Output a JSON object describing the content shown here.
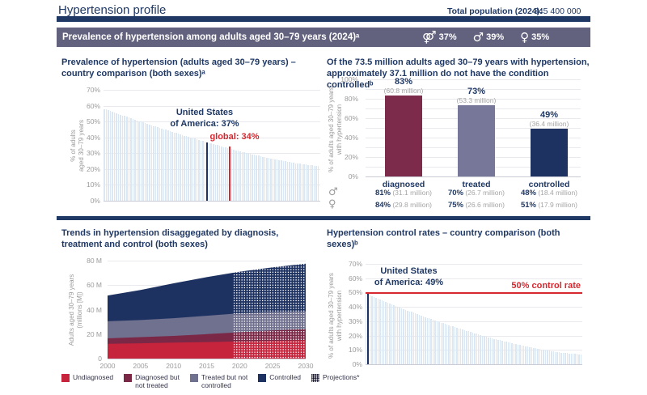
{
  "header": {
    "title": "Hypertension profile",
    "total_population_label": "Total population (2024):",
    "total_population_value": "345 400 000"
  },
  "banner": {
    "title": "Prevalence of hypertension among adults aged 30–79 years (2024)ᵃ",
    "stats": [
      {
        "icon": "both-sexes-icon",
        "glyph": "⚤",
        "value": "37%"
      },
      {
        "icon": "male-icon",
        "glyph": "♂",
        "value": "39%"
      },
      {
        "icon": "female-icon",
        "glyph": "♀",
        "value": "35%"
      }
    ]
  },
  "colors": {
    "navy": "#1e3262",
    "navy_text": "#1f3864",
    "red": "#d7282f",
    "maroon": "#7d2b4b",
    "slate": "#77779a",
    "light_bar": "#dbe8f4",
    "banner_bg": "#62627f",
    "grid": "#e9e9ee",
    "baseline": "#c9ccd4",
    "tick_text": "#9b9b9b",
    "sub_gray": "#a5a5a5"
  },
  "chart_data": [
    {
      "id": "prevalence-comparison",
      "type": "bar",
      "title": "Prevalence of hypertension (adults aged 30–79 years) – country comparison (both sexes)ᵃ",
      "ylabel_lines": [
        "% of adults",
        "aged 30–79 years"
      ],
      "ylim": [
        0,
        70
      ],
      "yticks": [
        "0%",
        "10%",
        "20%",
        "30%",
        "40%",
        "50%",
        "60%",
        "70%"
      ],
      "n_bars": 105,
      "values_start": 58,
      "values_end": 22,
      "decay_exponent": 1.35,
      "highlight": {
        "annotation_lines": [
          "United States",
          "of America: 37%"
        ],
        "value": 37,
        "index_fraction": 0.48
      },
      "reference": {
        "label": "global: 34%",
        "value": 34,
        "index_fraction": 0.585
      },
      "grid": true,
      "legend_position": "none"
    },
    {
      "id": "care-cascade",
      "type": "bar",
      "title": "Of the 73.5 million adults aged 30–79 years with hypertension, approximately 37.1 million do not have the condition controlledᵇ",
      "ylabel_lines": [
        "% of adults aged 30–79 years",
        "with hypertension"
      ],
      "ylim": [
        0,
        100
      ],
      "yticks": [
        "0%",
        "20%",
        "40%",
        "60%",
        "80%",
        "100%"
      ],
      "categories": [
        "diagnosed",
        "treated",
        "controlled"
      ],
      "values": [
        83,
        73,
        49
      ],
      "value_labels": [
        "83%",
        "73%",
        "49%"
      ],
      "value_sublabels": [
        "(60.8 million)",
        "(53.3 million)",
        "(36.4 million)"
      ],
      "bar_colors": [
        "#7d2b4b",
        "#77779a",
        "#1e3262"
      ],
      "sex_rows": [
        {
          "icon": "male-icon",
          "glyph": "♂",
          "cells": [
            {
              "pct": "81%",
              "millions": "(31.1 million)"
            },
            {
              "pct": "70%",
              "millions": "(26.7 million)"
            },
            {
              "pct": "48%",
              "millions": "(18.4 million)"
            }
          ]
        },
        {
          "icon": "female-icon",
          "glyph": "♀",
          "cells": [
            {
              "pct": "84%",
              "millions": "(29.8 million)"
            },
            {
              "pct": "75%",
              "millions": "(26.6 million)"
            },
            {
              "pct": "51%",
              "millions": "(17.9 million)"
            }
          ]
        }
      ],
      "grid": true
    },
    {
      "id": "trends-stacked-area",
      "type": "area",
      "title": "Trends in hypertension disaggegated by diagnosis, treatment and control (both sexes)",
      "ylabel_lines": [
        "Adults aged 30–79 years",
        "(millions [M])"
      ],
      "ylim": [
        0,
        80
      ],
      "yticks": [
        "0",
        "20 M",
        "40 M",
        "60 M",
        "80 M"
      ],
      "x": [
        2000,
        2005,
        2010,
        2015,
        2020,
        2025,
        2030
      ],
      "xticks": [
        "2000",
        "2005",
        "2010",
        "2015",
        "2020",
        "2025",
        "2030"
      ],
      "projection_start_year": 2019,
      "series": [
        {
          "name": "Undiagnosed",
          "color": "#c5243c",
          "cumulative_top_millions": [
            12,
            12.5,
            13,
            13.5,
            14,
            14.5,
            15
          ]
        },
        {
          "name": "Diagnosed but not treated",
          "color": "#7b2746",
          "cumulative_top_millions": [
            16.5,
            17.5,
            18.5,
            20,
            21.5,
            23,
            24
          ]
        },
        {
          "name": "Treated but not controlled",
          "color": "#70708f",
          "cumulative_top_millions": [
            30.5,
            31.5,
            33,
            35,
            37,
            38,
            38.5
          ]
        },
        {
          "name": "Controlled",
          "color": "#1e3262",
          "cumulative_top_millions": [
            51.5,
            56,
            61.5,
            66.5,
            71,
            74.5,
            77.5
          ]
        }
      ],
      "legend": [
        {
          "label_lines": [
            "Undiagnosed"
          ],
          "color": "#c5243c",
          "pattern": false
        },
        {
          "label_lines": [
            "Diagnosed but",
            "not treated"
          ],
          "color": "#7b2746",
          "pattern": false
        },
        {
          "label_lines": [
            "Treated but not",
            "controlled"
          ],
          "color": "#70708f",
          "pattern": false
        },
        {
          "label_lines": [
            "Controlled"
          ],
          "color": "#1e3262",
          "pattern": false
        },
        {
          "label_lines": [
            "Projections*"
          ],
          "color": "#16162c",
          "pattern": true
        }
      ]
    },
    {
      "id": "control-comparison",
      "type": "bar",
      "title": "Hypertension control rates – country comparison (both sexes)ᵇ",
      "ylabel_lines": [
        "% of adults aged 30–79 years",
        "with hypertension"
      ],
      "ylim": [
        0,
        70
      ],
      "yticks": [
        "0%",
        "10%",
        "20%",
        "30%",
        "40%",
        "50%",
        "60%",
        "70%"
      ],
      "n_bars": 110,
      "values_start": 49,
      "values_end": 7,
      "decay_exponent": 1.5,
      "highlight": {
        "annotation_lines": [
          "United States",
          "of America: 49%"
        ],
        "value": 49,
        "index": 1
      },
      "reference_line": {
        "label": "50% control rate",
        "value": 50
      },
      "grid": true
    }
  ]
}
